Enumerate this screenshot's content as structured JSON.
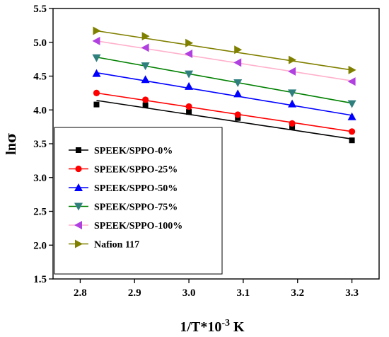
{
  "chart_data": {
    "type": "scatter",
    "xlabel": {
      "base": "1/T*10",
      "sup": "-3",
      "unit": " K"
    },
    "ylabel": {
      "base": "ln",
      "greek": "σ"
    },
    "xlim": [
      2.75,
      3.35
    ],
    "ylim": [
      1.5,
      5.5
    ],
    "xticks": [
      "2.8",
      "2.9",
      "3.0",
      "3.1",
      "3.2",
      "3.3"
    ],
    "xtick_values": [
      2.8,
      2.9,
      3.0,
      3.1,
      3.2,
      3.3
    ],
    "yticks": [
      "1.5",
      "2.0",
      "2.5",
      "3.0",
      "3.5",
      "4.0",
      "4.5",
      "5.0",
      "5.5"
    ],
    "ytick_values": [
      1.5,
      2.0,
      2.5,
      3.0,
      3.5,
      4.0,
      4.5,
      5.0,
      5.5
    ],
    "legend_position": "lower-left",
    "x": [
      2.83,
      2.92,
      3.0,
      3.09,
      3.19,
      3.3
    ],
    "series": [
      {
        "name": "SPEEK/SPPO-0%",
        "marker": "square",
        "color": "#000000",
        "fit_color": "#000000",
        "values": [
          4.08,
          4.07,
          3.97,
          3.88,
          3.75,
          3.55
        ],
        "fit": [
          4.14,
          3.57
        ]
      },
      {
        "name": "SPEEK/SPPO-25%",
        "marker": "circle",
        "color": "#ff0000",
        "fit_color": "#ff0000",
        "values": [
          4.25,
          4.15,
          4.05,
          3.93,
          3.8,
          3.68
        ],
        "fit": [
          4.25,
          3.68
        ]
      },
      {
        "name": "SPEEK/SPPO-50%",
        "marker": "triangle-up",
        "color": "#0000ff",
        "fit_color": "#0000ff",
        "values": [
          4.54,
          4.45,
          4.35,
          4.24,
          4.09,
          3.9
        ],
        "fit": [
          4.55,
          3.92
        ]
      },
      {
        "name": "SPEEK/SPPO-75%",
        "marker": "triangle-down",
        "color": "#2f7f7f",
        "fit_color": "#008000",
        "values": [
          4.77,
          4.65,
          4.53,
          4.4,
          4.25,
          4.09
        ],
        "fit": [
          4.78,
          4.1
        ]
      },
      {
        "name": "SPEEK/SPPO-100%",
        "marker": "triangle-left",
        "color": "#b040e0",
        "fit_color": "#ffb0cc",
        "values": [
          5.02,
          4.92,
          4.83,
          4.7,
          4.57,
          4.42
        ],
        "fit": [
          5.02,
          4.43
        ]
      },
      {
        "name": "Nafion 117",
        "marker": "triangle-right",
        "color": "#808000",
        "fit_color": "#808000",
        "values": [
          5.17,
          5.09,
          4.99,
          4.89,
          4.74,
          4.59
        ],
        "fit": [
          5.17,
          4.59
        ]
      }
    ]
  }
}
